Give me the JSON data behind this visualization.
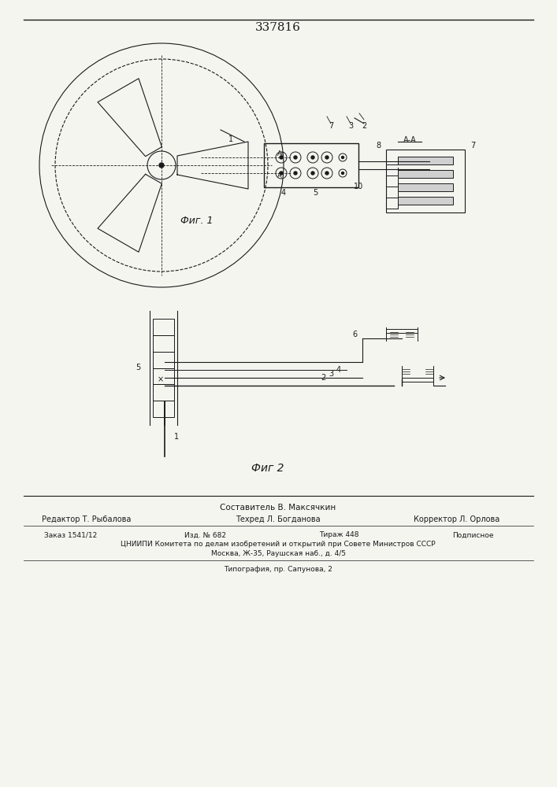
{
  "title": "337816",
  "fig1_caption": "Фиг. 1",
  "fig2_caption": "Фиг 2",
  "footer_line1": "Составитель В. Максячкин",
  "footer_line2_left": "Редактор Т. Рыбалова",
  "footer_line2_mid": "Техред Л. Богданова",
  "footer_line2_right": "Корректор Л. Орлова",
  "footer_line3_left": "Заказ 1541/12",
  "footer_line3_mid1": "Изд. № 682",
  "footer_line3_mid2": "Тираж 448",
  "footer_line3_right": "Подписное",
  "footer_line4": "ЦНИИПИ Комитета по делам изобретений и открытий при Совете Министров СССР",
  "footer_line5": "Москва, Ж-35, Раушская наб., д. 4/5",
  "footer_line6": "Типография, пр. Сапунова, 2",
  "bg_color": "#f5f5f0",
  "line_color": "#1a1a1a"
}
